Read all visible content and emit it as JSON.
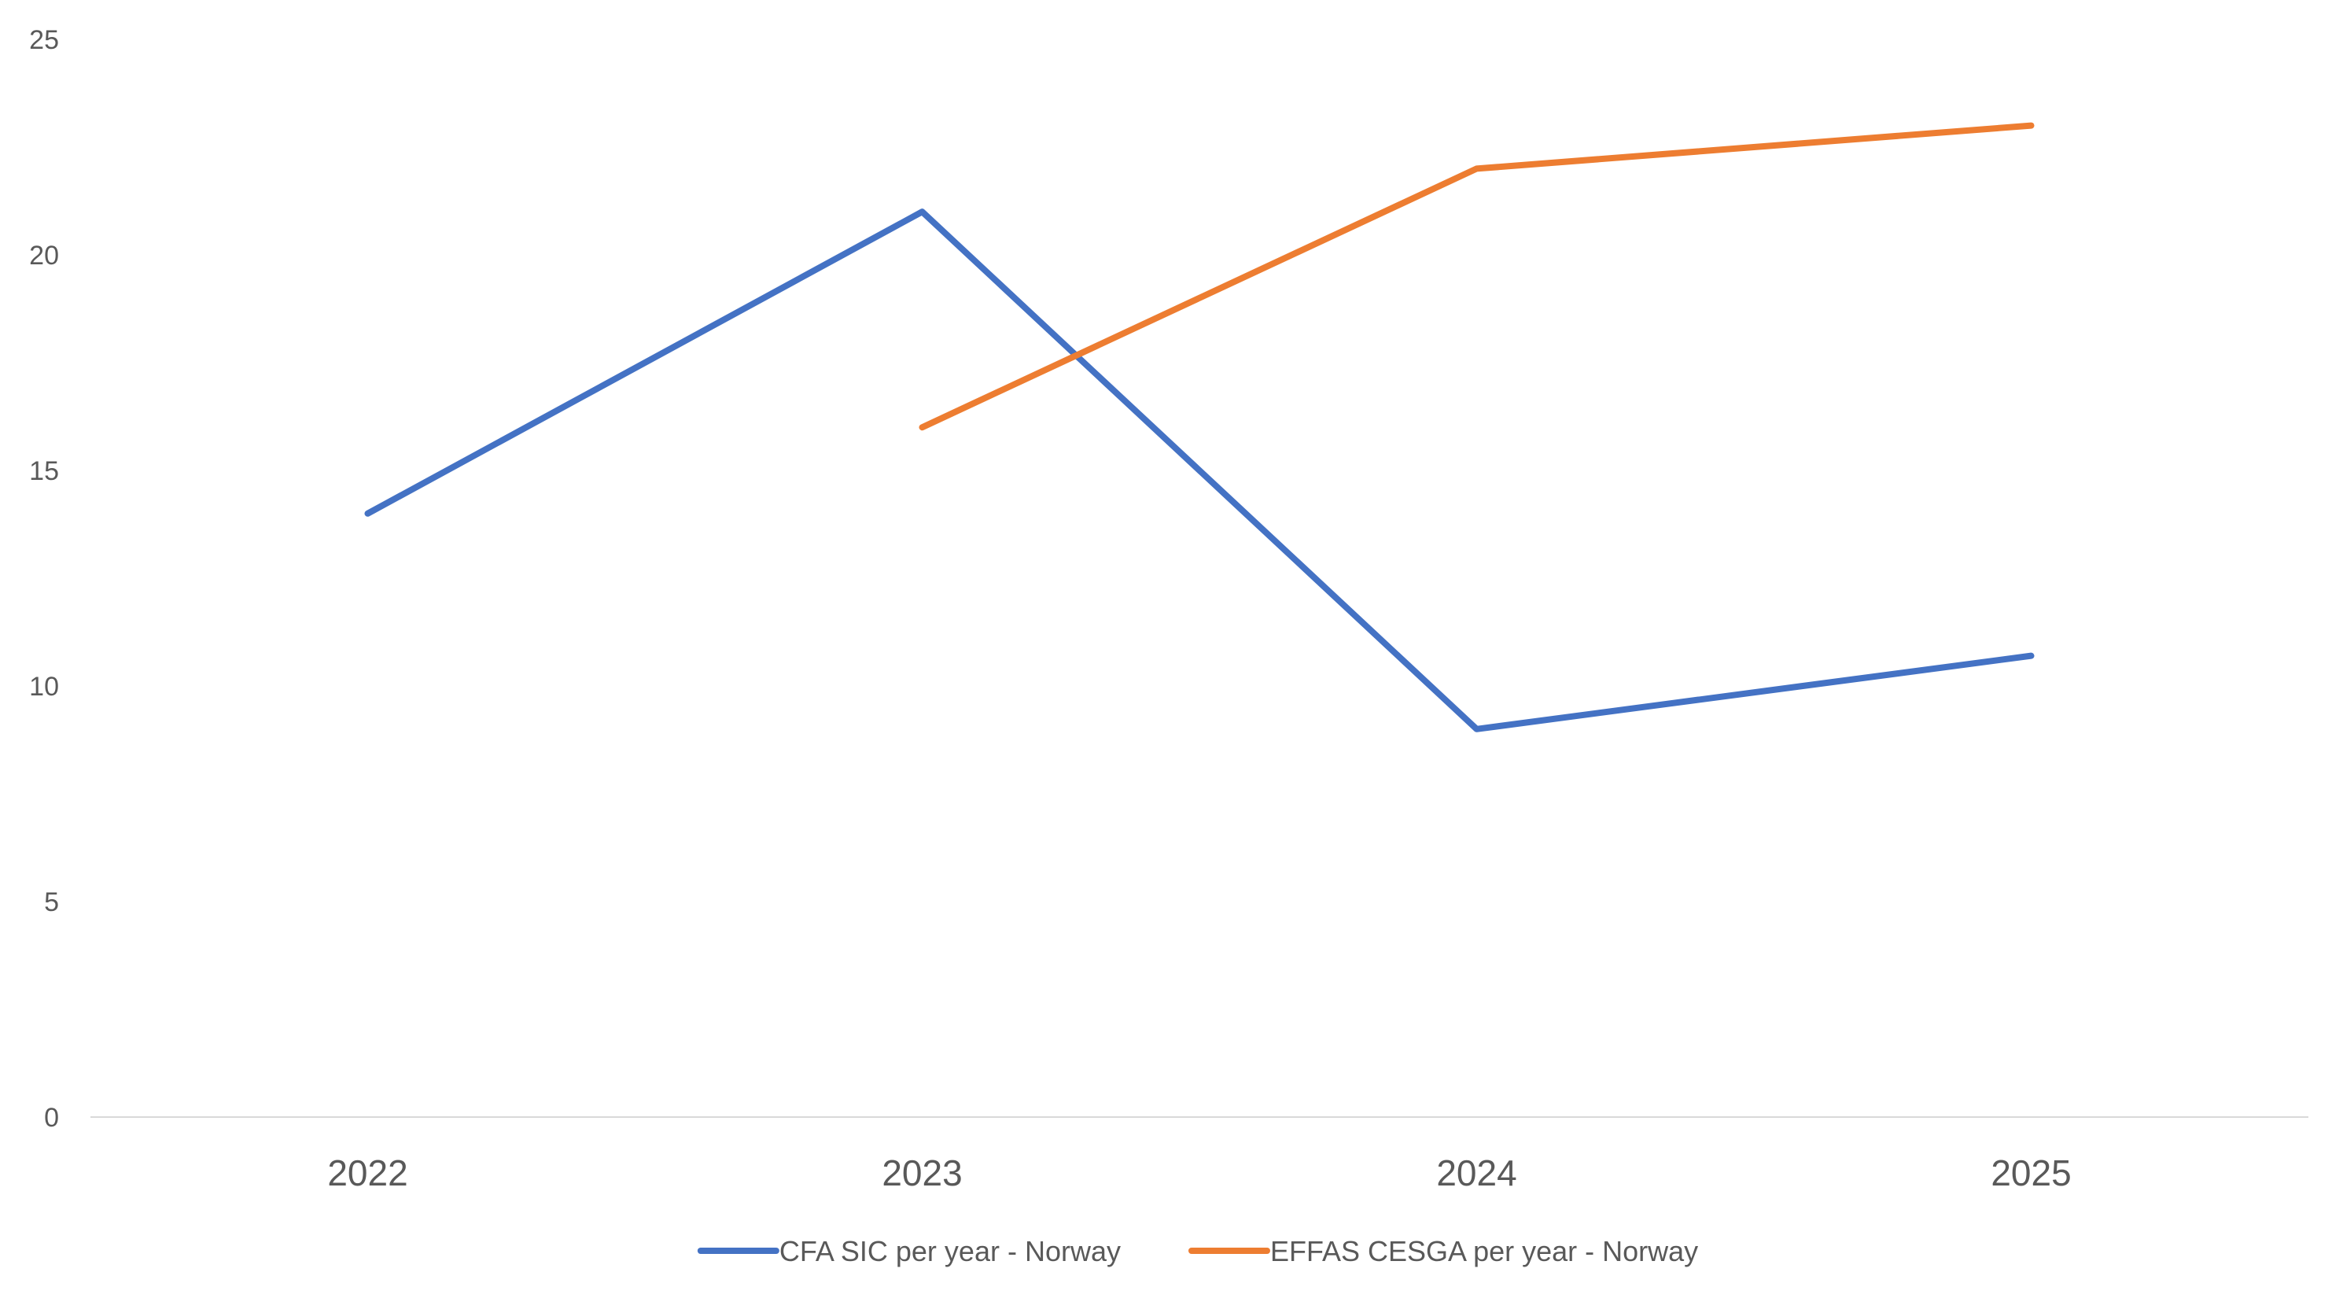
{
  "chart_data": {
    "type": "line",
    "title": "",
    "xlabel": "",
    "ylabel": "",
    "categories": [
      "2022",
      "2023",
      "2024",
      "2025"
    ],
    "ylim": [
      0,
      25
    ],
    "yticks": [
      0,
      5,
      10,
      15,
      20,
      25
    ],
    "grid": false,
    "legend_position": "bottom",
    "series": [
      {
        "name": "CFA SIC per year - Norway",
        "color": "#4472C4",
        "values": [
          14,
          21,
          9,
          10.7
        ]
      },
      {
        "name": "EFFAS CESGA per year - Norway",
        "color": "#ED7D31",
        "values": [
          null,
          16,
          22,
          23
        ]
      }
    ]
  }
}
